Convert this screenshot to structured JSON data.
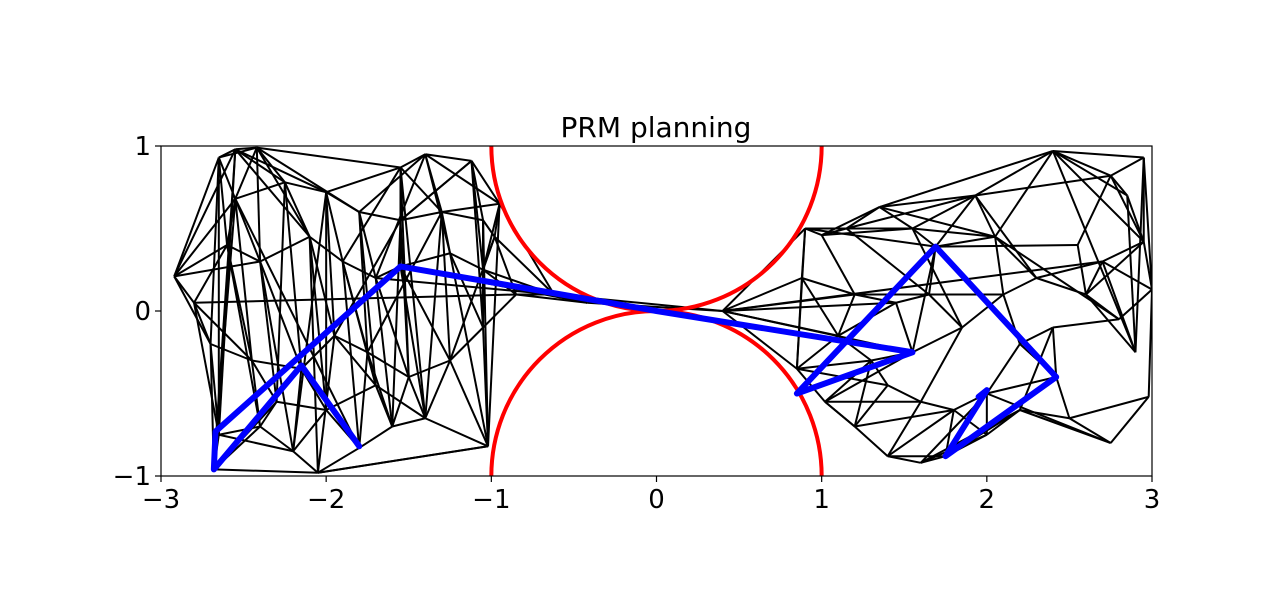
{
  "chart_data": {
    "type": "line",
    "title": "PRM planning",
    "xlabel": "",
    "ylabel": "",
    "xlim": [
      -3,
      3
    ],
    "ylim": [
      -1,
      1
    ],
    "x_ticks": [
      -3,
      -2,
      -1,
      0,
      1,
      2,
      3
    ],
    "y_ticks": [
      -1,
      0,
      1
    ],
    "x_tick_labels": [
      "−3",
      "−2",
      "−1",
      "0",
      "1",
      "2",
      "3"
    ],
    "y_tick_labels": [
      "−1",
      "0",
      "1"
    ],
    "grid": false,
    "legend": "none",
    "colors": {
      "roadmap": "#000000",
      "obstacle": "#ff0000",
      "path": "#0000ff"
    },
    "obstacles": [
      {
        "center": [
          0,
          1
        ],
        "radius": 1
      },
      {
        "center": [
          0,
          -1
        ],
        "radius": 1
      }
    ],
    "nodes": [
      [
        -2.92,
        0.21
      ],
      [
        -2.55,
        0.98
      ],
      [
        -2.65,
        0.93
      ],
      [
        -2.42,
        0.99
      ],
      [
        -1.55,
        0.87
      ],
      [
        -1.4,
        0.95
      ],
      [
        -1.12,
        0.91
      ],
      [
        -0.95,
        0.65
      ],
      [
        -2.55,
        0.68
      ],
      [
        -2.25,
        0.78
      ],
      [
        -2.0,
        0.72
      ],
      [
        -1.8,
        0.6
      ],
      [
        -1.55,
        0.55
      ],
      [
        -1.3,
        0.6
      ],
      [
        -1.05,
        0.55
      ],
      [
        -0.98,
        0.45
      ],
      [
        -2.8,
        0.05
      ],
      [
        -2.6,
        0.4
      ],
      [
        -2.4,
        0.3
      ],
      [
        -2.1,
        0.45
      ],
      [
        -1.9,
        0.3
      ],
      [
        -1.7,
        0.2
      ],
      [
        -1.55,
        0.27
      ],
      [
        -1.25,
        0.35
      ],
      [
        -1.05,
        0.25
      ],
      [
        -0.85,
        0.1
      ],
      [
        -0.62,
        0.1
      ],
      [
        -0.42,
        0.05
      ],
      [
        -2.7,
        -0.2
      ],
      [
        -2.45,
        -0.3
      ],
      [
        -2.15,
        -0.35
      ],
      [
        -1.95,
        -0.15
      ],
      [
        -1.75,
        -0.25
      ],
      [
        -1.5,
        -0.4
      ],
      [
        -1.25,
        -0.3
      ],
      [
        -1.05,
        -0.1
      ],
      [
        -2.65,
        -0.75
      ],
      [
        -2.4,
        -0.7
      ],
      [
        -2.2,
        -0.85
      ],
      [
        -2.05,
        -0.98
      ],
      [
        -1.8,
        -0.83
      ],
      [
        -1.6,
        -0.7
      ],
      [
        -1.4,
        -0.65
      ],
      [
        -1.02,
        -0.82
      ],
      [
        -2.68,
        -0.96
      ],
      [
        -2.3,
        -0.55
      ],
      [
        -2.0,
        -0.6
      ],
      [
        -1.7,
        -0.45
      ],
      [
        0.4,
        0.0
      ],
      [
        0.9,
        0.5
      ],
      [
        0.88,
        0.2
      ],
      [
        0.85,
        -0.35
      ],
      [
        1.02,
        -0.55
      ],
      [
        1.2,
        -0.7
      ],
      [
        1.4,
        -0.88
      ],
      [
        1.6,
        -0.92
      ],
      [
        1.0,
        0.46
      ],
      [
        1.15,
        0.5
      ],
      [
        1.35,
        0.63
      ],
      [
        1.55,
        0.5
      ],
      [
        1.69,
        0.39
      ],
      [
        1.93,
        0.7
      ],
      [
        2.05,
        0.45
      ],
      [
        2.4,
        0.97
      ],
      [
        2.75,
        0.82
      ],
      [
        2.95,
        0.93
      ],
      [
        2.95,
        0.42
      ],
      [
        3.0,
        0.13
      ],
      [
        2.98,
        -0.52
      ],
      [
        2.75,
        -0.8
      ],
      [
        2.5,
        -0.65
      ],
      [
        2.42,
        -0.4
      ],
      [
        2.2,
        -0.2
      ],
      [
        2.0,
        -0.5
      ],
      [
        1.75,
        -0.88
      ],
      [
        1.55,
        -0.25
      ],
      [
        1.3,
        -0.3
      ],
      [
        1.1,
        -0.15
      ],
      [
        1.2,
        0.1
      ],
      [
        1.45,
        0.05
      ],
      [
        1.65,
        0.1
      ],
      [
        1.85,
        -0.1
      ],
      [
        2.1,
        0.1
      ],
      [
        2.3,
        0.2
      ],
      [
        2.6,
        0.1
      ],
      [
        2.8,
        -0.05
      ],
      [
        2.7,
        0.3
      ],
      [
        2.4,
        -0.1
      ],
      [
        2.2,
        -0.6
      ],
      [
        2.0,
        -0.75
      ],
      [
        1.8,
        -0.6
      ],
      [
        1.6,
        -0.55
      ],
      [
        1.4,
        -0.45
      ],
      [
        2.55,
        0.4
      ],
      [
        2.85,
        0.7
      ],
      [
        2.9,
        -0.25
      ]
    ],
    "edges": [
      [
        0,
        1
      ],
      [
        0,
        8
      ],
      [
        0,
        17
      ],
      [
        0,
        16
      ],
      [
        0,
        28
      ],
      [
        0,
        18
      ],
      [
        1,
        2
      ],
      [
        1,
        3
      ],
      [
        1,
        9
      ],
      [
        1,
        10
      ],
      [
        1,
        36
      ],
      [
        1,
        44
      ],
      [
        2,
        3
      ],
      [
        2,
        17
      ],
      [
        2,
        36
      ],
      [
        2,
        28
      ],
      [
        3,
        4
      ],
      [
        3,
        9
      ],
      [
        3,
        11
      ],
      [
        3,
        18
      ],
      [
        3,
        19
      ],
      [
        4,
        5
      ],
      [
        4,
        12
      ],
      [
        4,
        22
      ],
      [
        4,
        33
      ],
      [
        4,
        42
      ],
      [
        4,
        13
      ],
      [
        4,
        10
      ],
      [
        5,
        6
      ],
      [
        5,
        7
      ],
      [
        5,
        13
      ],
      [
        5,
        23
      ],
      [
        6,
        7
      ],
      [
        6,
        14
      ],
      [
        6,
        24
      ],
      [
        6,
        35
      ],
      [
        6,
        12
      ],
      [
        7,
        15
      ],
      [
        7,
        24
      ],
      [
        7,
        43
      ],
      [
        7,
        26
      ],
      [
        7,
        13
      ],
      [
        8,
        9
      ],
      [
        8,
        17
      ],
      [
        8,
        29
      ],
      [
        8,
        44
      ],
      [
        8,
        40
      ],
      [
        9,
        10
      ],
      [
        9,
        19
      ],
      [
        9,
        30
      ],
      [
        9,
        45
      ],
      [
        10,
        11
      ],
      [
        10,
        20
      ],
      [
        10,
        31
      ],
      [
        10,
        46
      ],
      [
        10,
        38
      ],
      [
        11,
        12
      ],
      [
        11,
        21
      ],
      [
        11,
        32
      ],
      [
        11,
        47
      ],
      [
        12,
        13
      ],
      [
        12,
        22
      ],
      [
        12,
        33
      ],
      [
        12,
        41
      ],
      [
        13,
        14
      ],
      [
        13,
        23
      ],
      [
        13,
        34
      ],
      [
        13,
        42
      ],
      [
        14,
        15
      ],
      [
        14,
        24
      ],
      [
        14,
        35
      ],
      [
        14,
        43
      ],
      [
        15,
        25
      ],
      [
        15,
        24
      ],
      [
        15,
        26
      ],
      [
        15,
        34
      ],
      [
        16,
        17
      ],
      [
        16,
        28
      ],
      [
        16,
        29
      ],
      [
        16,
        36
      ],
      [
        16,
        25
      ],
      [
        17,
        18
      ],
      [
        17,
        29
      ],
      [
        17,
        37
      ],
      [
        18,
        19
      ],
      [
        18,
        30
      ],
      [
        18,
        45
      ],
      [
        18,
        38
      ],
      [
        19,
        20
      ],
      [
        19,
        31
      ],
      [
        19,
        46
      ],
      [
        19,
        39
      ],
      [
        20,
        21
      ],
      [
        20,
        32
      ],
      [
        20,
        47
      ],
      [
        20,
        40
      ],
      [
        21,
        22
      ],
      [
        21,
        33
      ],
      [
        21,
        41
      ],
      [
        21,
        26
      ],
      [
        22,
        23
      ],
      [
        22,
        34
      ],
      [
        22,
        42
      ],
      [
        22,
        27
      ],
      [
        23,
        24
      ],
      [
        23,
        35
      ],
      [
        23,
        43
      ],
      [
        24,
        25
      ],
      [
        24,
        26
      ],
      [
        24,
        35
      ],
      [
        25,
        26
      ],
      [
        25,
        27
      ],
      [
        25,
        35
      ],
      [
        26,
        27
      ],
      [
        26,
        48
      ],
      [
        27,
        48
      ],
      [
        28,
        29
      ],
      [
        28,
        36
      ],
      [
        28,
        44
      ],
      [
        29,
        30
      ],
      [
        29,
        37
      ],
      [
        29,
        45
      ],
      [
        30,
        31
      ],
      [
        30,
        38
      ],
      [
        30,
        46
      ],
      [
        31,
        32
      ],
      [
        31,
        39
      ],
      [
        31,
        47
      ],
      [
        32,
        33
      ],
      [
        32,
        40
      ],
      [
        32,
        41
      ],
      [
        33,
        34
      ],
      [
        33,
        41
      ],
      [
        33,
        42
      ],
      [
        34,
        35
      ],
      [
        34,
        42
      ],
      [
        34,
        43
      ],
      [
        35,
        43
      ],
      [
        36,
        37
      ],
      [
        36,
        44
      ],
      [
        36,
        38
      ],
      [
        37,
        38
      ],
      [
        37,
        45
      ],
      [
        37,
        44
      ],
      [
        38,
        39
      ],
      [
        38,
        46
      ],
      [
        39,
        40
      ],
      [
        39,
        44
      ],
      [
        39,
        43
      ],
      [
        40,
        41
      ],
      [
        40,
        46
      ],
      [
        41,
        42
      ],
      [
        41,
        47
      ],
      [
        42,
        43
      ],
      [
        42,
        47
      ],
      [
        43,
        39
      ],
      [
        44,
        45
      ],
      [
        45,
        46
      ],
      [
        46,
        47
      ],
      [
        0,
        2
      ],
      [
        3,
        8
      ],
      [
        5,
        11
      ],
      [
        6,
        12
      ],
      [
        2,
        18
      ],
      [
        1,
        19
      ],
      [
        4,
        20
      ],
      [
        5,
        21
      ],
      [
        12,
        31
      ],
      [
        13,
        32
      ],
      [
        48,
        49
      ],
      [
        48,
        50
      ],
      [
        48,
        51
      ],
      [
        48,
        78
      ],
      [
        48,
        79
      ],
      [
        48,
        77
      ],
      [
        48,
        75
      ],
      [
        48,
        86
      ],
      [
        49,
        50
      ],
      [
        49,
        56
      ],
      [
        49,
        57
      ],
      [
        49,
        51
      ],
      [
        49,
        60
      ],
      [
        50,
        51
      ],
      [
        50,
        77
      ],
      [
        50,
        78
      ],
      [
        51,
        52
      ],
      [
        51,
        76
      ],
      [
        51,
        77
      ],
      [
        51,
        92
      ],
      [
        52,
        53
      ],
      [
        52,
        76
      ],
      [
        52,
        91
      ],
      [
        52,
        53
      ],
      [
        53,
        54
      ],
      [
        53,
        92
      ],
      [
        53,
        90
      ],
      [
        54,
        55
      ],
      [
        54,
        90
      ],
      [
        54,
        74
      ],
      [
        55,
        74
      ],
      [
        55,
        89
      ],
      [
        55,
        73
      ],
      [
        56,
        57
      ],
      [
        56,
        59
      ],
      [
        56,
        58
      ],
      [
        57,
        58
      ],
      [
        57,
        59
      ],
      [
        57,
        61
      ],
      [
        58,
        59
      ],
      [
        58,
        61
      ],
      [
        58,
        63
      ],
      [
        59,
        60
      ],
      [
        59,
        61
      ],
      [
        59,
        62
      ],
      [
        60,
        61
      ],
      [
        60,
        62
      ],
      [
        60,
        75
      ],
      [
        60,
        80
      ],
      [
        61,
        62
      ],
      [
        61,
        63
      ],
      [
        61,
        64
      ],
      [
        62,
        63
      ],
      [
        62,
        83
      ],
      [
        62,
        82
      ],
      [
        63,
        64
      ],
      [
        63,
        65
      ],
      [
        63,
        95
      ],
      [
        63,
        66
      ],
      [
        64,
        65
      ],
      [
        64,
        66
      ],
      [
        64,
        96
      ],
      [
        64,
        94
      ],
      [
        65,
        66
      ],
      [
        65,
        67
      ],
      [
        65,
        96
      ],
      [
        66,
        67
      ],
      [
        66,
        94
      ],
      [
        66,
        86
      ],
      [
        67,
        68
      ],
      [
        67,
        85
      ],
      [
        67,
        86
      ],
      [
        67,
        97
      ],
      [
        68,
        69
      ],
      [
        68,
        97
      ],
      [
        68,
        70
      ],
      [
        69,
        70
      ],
      [
        69,
        73
      ],
      [
        69,
        88
      ],
      [
        70,
        71
      ],
      [
        70,
        88
      ],
      [
        70,
        97
      ],
      [
        71,
        72
      ],
      [
        71,
        73
      ],
      [
        71,
        87
      ],
      [
        72,
        73
      ],
      [
        72,
        82
      ],
      [
        72,
        87
      ],
      [
        73,
        74
      ],
      [
        73,
        89
      ],
      [
        73,
        90
      ],
      [
        74,
        89
      ],
      [
        74,
        90
      ],
      [
        75,
        76
      ],
      [
        75,
        81
      ],
      [
        75,
        79
      ],
      [
        76,
        77
      ],
      [
        76,
        92
      ],
      [
        77,
        78
      ],
      [
        77,
        79
      ],
      [
        78,
        79
      ],
      [
        78,
        80
      ],
      [
        79,
        80
      ],
      [
        80,
        81
      ],
      [
        80,
        82
      ],
      [
        81,
        82
      ],
      [
        81,
        91
      ],
      [
        82,
        83
      ],
      [
        83,
        84
      ],
      [
        83,
        86
      ],
      [
        84,
        85
      ],
      [
        84,
        86
      ],
      [
        85,
        87
      ],
      [
        85,
        97
      ],
      [
        86,
        95
      ],
      [
        87,
        88
      ],
      [
        88,
        89
      ],
      [
        89,
        90
      ],
      [
        90,
        91
      ],
      [
        91,
        92
      ],
      [
        93,
        60
      ],
      [
        93,
        64
      ],
      [
        93,
        84
      ],
      [
        94,
        95
      ],
      [
        95,
        84
      ],
      [
        96,
        94
      ],
      [
        97,
        70
      ],
      [
        56,
        78
      ],
      [
        57,
        80
      ],
      [
        58,
        62
      ],
      [
        61,
        83
      ],
      [
        66,
        84
      ],
      [
        52,
        75
      ],
      [
        53,
        76
      ],
      [
        54,
        91
      ],
      [
        55,
        88
      ],
      [
        74,
        88
      ],
      [
        60,
        71
      ],
      [
        59,
        81
      ],
      [
        62,
        85
      ],
      [
        63,
        94
      ],
      [
        65,
        95
      ]
    ],
    "path": [
      [
        -1.8,
        -0.82
      ],
      [
        -2.15,
        -0.33
      ],
      [
        -2.68,
        -0.96
      ],
      [
        -2.67,
        -0.73
      ],
      [
        -1.55,
        0.27
      ],
      [
        0.0,
        0.0
      ],
      [
        1.55,
        -0.25
      ],
      [
        0.85,
        -0.5
      ],
      [
        1.69,
        0.39
      ],
      [
        2.42,
        -0.4
      ],
      [
        1.75,
        -0.88
      ],
      [
        2.0,
        -0.48
      ],
      [
        1.95,
        -0.52
      ]
    ]
  }
}
